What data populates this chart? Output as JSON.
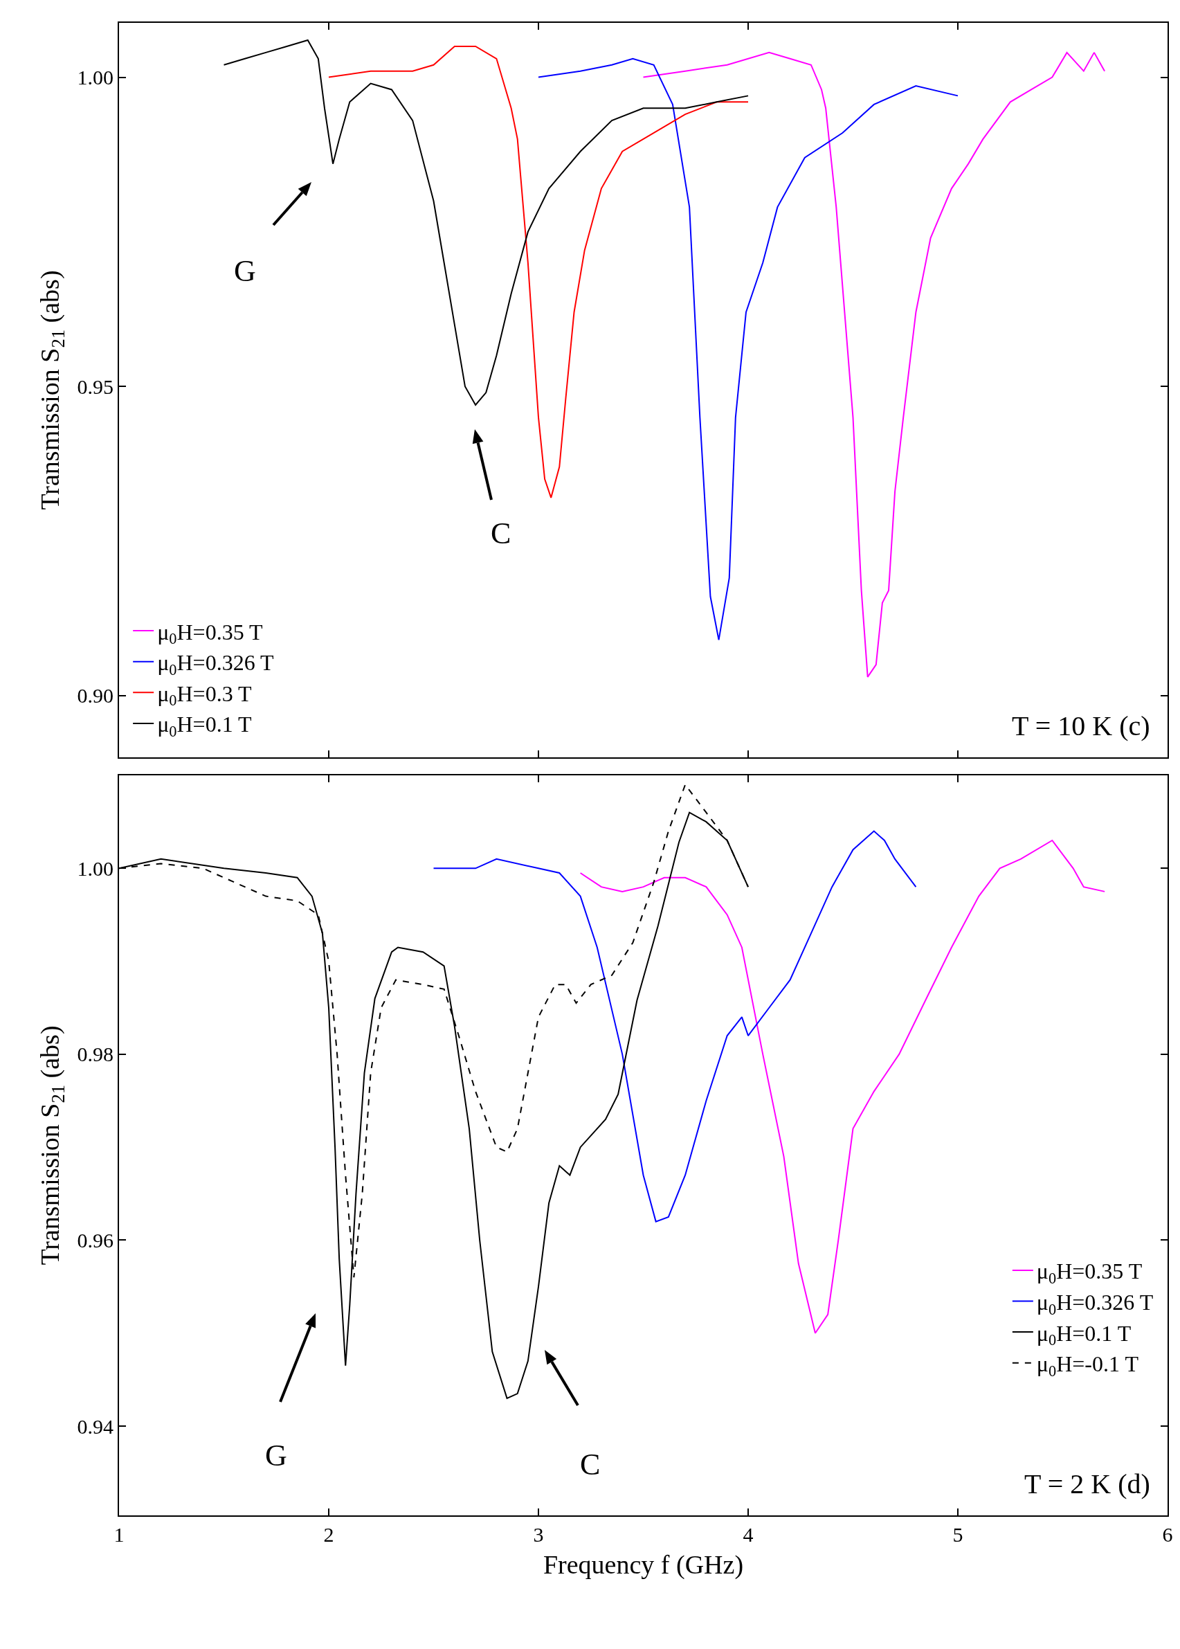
{
  "chart_data": [
    {
      "type": "line",
      "ylabel": "Transmission S$_{21}$ (abs)",
      "xlim": [
        1,
        6
      ],
      "xticks": [
        1,
        2,
        3,
        4,
        5,
        6
      ],
      "ylim": [
        0.89,
        1.0088
      ],
      "yticks": [
        {
          "value": 0.9,
          "label": "0.90"
        },
        {
          "value": 0.95,
          "label": "0.95"
        },
        {
          "value": 1.0,
          "label": "1.00"
        }
      ],
      "tick_labels": "y",
      "grid": false,
      "legend": "bottom left",
      "marker": "none",
      "line_style": "solid",
      "annotations": [
        "G",
        "C",
        "T = 10 K (c)"
      ],
      "series": [
        {
          "name": "μ$_{0}$H=0.35 T",
          "color": "#ff00ff",
          "x": [
            3.5,
            3.7,
            3.9,
            4.1,
            4.2,
            4.3,
            4.35,
            4.37,
            4.42,
            4.5,
            4.54,
            4.57,
            4.61,
            4.64,
            4.67,
            4.7,
            4.74,
            4.8,
            4.87,
            4.97,
            5.05,
            5.12,
            5.25,
            5.35,
            5.45,
            5.52,
            5.6,
            5.65,
            5.7
          ],
          "values": [
            1.0,
            1.001,
            1.002,
            1.004,
            1.003,
            1.002,
            0.998,
            0.995,
            0.979,
            0.945,
            0.917,
            0.903,
            0.905,
            0.915,
            0.917,
            0.933,
            0.945,
            0.962,
            0.974,
            0.982,
            0.986,
            0.99,
            0.996,
            0.998,
            1.0,
            1.004,
            1.001,
            1.004,
            1.001
          ]
        },
        {
          "name": "μ$_{0}$H=0.326 T",
          "color": "#0000ff",
          "x": [
            3.0,
            3.2,
            3.35,
            3.45,
            3.55,
            3.64,
            3.72,
            3.77,
            3.82,
            3.86,
            3.91,
            3.94,
            3.99,
            4.07,
            4.14,
            4.27,
            4.45,
            4.6,
            4.8,
            5.0
          ],
          "values": [
            1.0,
            1.001,
            1.002,
            1.003,
            1.002,
            0.9956,
            0.979,
            0.945,
            0.916,
            0.909,
            0.919,
            0.945,
            0.962,
            0.97,
            0.979,
            0.987,
            0.991,
            0.9956,
            0.9986,
            0.997
          ]
        },
        {
          "name": "μ$_{0}$H=0.3 T",
          "color": "#ff0000",
          "x": [
            2.0,
            2.2,
            2.4,
            2.5,
            2.6,
            2.7,
            2.8,
            2.87,
            2.9,
            2.95,
            3.0,
            3.03,
            3.06,
            3.1,
            3.13,
            3.17,
            3.22,
            3.3,
            3.4,
            3.5,
            3.7,
            3.85,
            4.0
          ],
          "values": [
            1.0,
            1.001,
            1.001,
            1.002,
            1.005,
            1.005,
            1.003,
            0.995,
            0.99,
            0.97,
            0.945,
            0.935,
            0.932,
            0.937,
            0.948,
            0.962,
            0.972,
            0.982,
            0.988,
            0.99,
            0.994,
            0.996,
            0.996
          ]
        },
        {
          "name": "μ$_{0}$H=0.1 T",
          "color": "#000000",
          "x": [
            1.5,
            1.6,
            1.7,
            1.8,
            1.9,
            1.95,
            1.98,
            2.02,
            2.05,
            2.1,
            2.2,
            2.3,
            2.4,
            2.5,
            2.55,
            2.6,
            2.65,
            2.7,
            2.75,
            2.8,
            2.87,
            2.95,
            3.05,
            3.2,
            3.35,
            3.5,
            3.7,
            3.85,
            4.0
          ],
          "values": [
            1.002,
            1.003,
            1.004,
            1.005,
            1.006,
            1.003,
            0.995,
            0.986,
            0.99,
            0.996,
            0.999,
            0.998,
            0.993,
            0.98,
            0.97,
            0.96,
            0.95,
            0.947,
            0.949,
            0.955,
            0.965,
            0.975,
            0.982,
            0.988,
            0.993,
            0.995,
            0.995,
            0.996,
            0.997
          ]
        }
      ]
    },
    {
      "type": "line",
      "xlabel": "Frequency f (GHz)",
      "ylabel": "Transmission S$_{21}$ (abs)",
      "xlim": [
        1,
        6
      ],
      "xticks": [
        1,
        2,
        3,
        4,
        5,
        6
      ],
      "ylim": [
        0.9304,
        1.01
      ],
      "yticks": [
        {
          "value": 0.94,
          "label": "0.94"
        },
        {
          "value": 0.96,
          "label": "0.96"
        },
        {
          "value": 0.98,
          "label": "0.98"
        },
        {
          "value": 1.0,
          "label": "1.00"
        }
      ],
      "grid": false,
      "legend": "bottom right",
      "marker": "none",
      "annotations": [
        "G",
        "C",
        "T = 2 K (d)"
      ],
      "series": [
        {
          "name": "μ$_{0}$H=0.35 T",
          "color": "#ff00ff",
          "line_style": "solid",
          "x": [
            3.2,
            3.3,
            3.4,
            3.5,
            3.6,
            3.7,
            3.8,
            3.9,
            3.97,
            4.07,
            4.17,
            4.24,
            4.32,
            4.38,
            4.43,
            4.5,
            4.6,
            4.72,
            4.85,
            4.97,
            5.1,
            5.2,
            5.3,
            5.45,
            5.55,
            5.6,
            5.7
          ],
          "values": [
            0.9995,
            0.998,
            0.9975,
            0.998,
            0.999,
            0.999,
            0.998,
            0.995,
            0.9915,
            0.98,
            0.969,
            0.9575,
            0.95,
            0.952,
            0.96,
            0.972,
            0.976,
            0.98,
            0.986,
            0.9915,
            0.997,
            1.0,
            1.001,
            1.003,
            1.0,
            0.998,
            0.9975
          ]
        },
        {
          "name": "μ$_{0}$H=0.326 T",
          "color": "#0000ff",
          "line_style": "solid",
          "x": [
            2.5,
            2.7,
            2.8,
            3.0,
            3.1,
            3.2,
            3.28,
            3.4,
            3.5,
            3.56,
            3.62,
            3.7,
            3.8,
            3.9,
            3.97,
            4.0,
            4.1,
            4.2,
            4.3,
            4.4,
            4.5,
            4.6,
            4.65,
            4.7,
            4.8
          ],
          "values": [
            1.0,
            1.0,
            1.001,
            1.0,
            0.9995,
            0.997,
            0.9915,
            0.98,
            0.967,
            0.962,
            0.9625,
            0.967,
            0.975,
            0.982,
            0.984,
            0.982,
            0.985,
            0.988,
            0.993,
            0.998,
            1.002,
            1.004,
            1.003,
            1.001,
            0.998
          ]
        },
        {
          "name": "μ$_{0}$H=0.1 T",
          "color": "#000000",
          "line_style": "solid",
          "x": [
            1.0,
            1.2,
            1.5,
            1.7,
            1.85,
            1.92,
            1.97,
            2.0,
            2.03,
            2.05,
            2.08,
            2.1,
            2.13,
            2.17,
            2.22,
            2.3,
            2.33,
            2.45,
            2.55,
            2.6,
            2.67,
            2.72,
            2.78,
            2.85,
            2.9,
            2.95,
            3.0,
            3.05,
            3.1,
            3.15,
            3.2,
            3.32,
            3.38,
            3.47,
            3.57,
            3.67,
            3.72,
            3.8,
            3.9,
            4.0
          ],
          "values": [
            1.0,
            1.001,
            1.0,
            0.9995,
            0.999,
            0.997,
            0.993,
            0.985,
            0.97,
            0.958,
            0.9465,
            0.953,
            0.965,
            0.978,
            0.986,
            0.991,
            0.9915,
            0.991,
            0.9895,
            0.983,
            0.972,
            0.96,
            0.948,
            0.943,
            0.9435,
            0.947,
            0.955,
            0.964,
            0.968,
            0.967,
            0.97,
            0.973,
            0.9757,
            0.9858,
            0.9938,
            1.0028,
            1.006,
            1.005,
            1.003,
            0.998
          ]
        },
        {
          "name": "μ$_{0}$H=-0.1 T",
          "color": "#000000",
          "line_style": "dashed",
          "x": [
            1.0,
            1.2,
            1.4,
            1.5,
            1.6,
            1.7,
            1.85,
            1.95,
            2.0,
            2.04,
            2.08,
            2.12,
            2.16,
            2.2,
            2.25,
            2.32,
            2.45,
            2.55,
            2.62,
            2.7,
            2.8,
            2.85,
            2.9,
            2.95,
            3.0,
            3.08,
            3.13,
            3.18,
            3.25,
            3.35,
            3.45,
            3.55,
            3.62,
            3.7,
            3.8,
            3.9,
            4.0
          ],
          "values": [
            1.0,
            1.0005,
            1.0,
            0.999,
            0.998,
            0.997,
            0.9965,
            0.995,
            0.99,
            0.98,
            0.967,
            0.956,
            0.965,
            0.978,
            0.985,
            0.988,
            0.9875,
            0.987,
            0.982,
            0.976,
            0.97,
            0.9695,
            0.972,
            0.978,
            0.984,
            0.9875,
            0.9875,
            0.9855,
            0.9875,
            0.9885,
            0.992,
            0.9985,
            1.004,
            1.009,
            1.006,
            1.003,
            0.998
          ]
        }
      ]
    }
  ]
}
